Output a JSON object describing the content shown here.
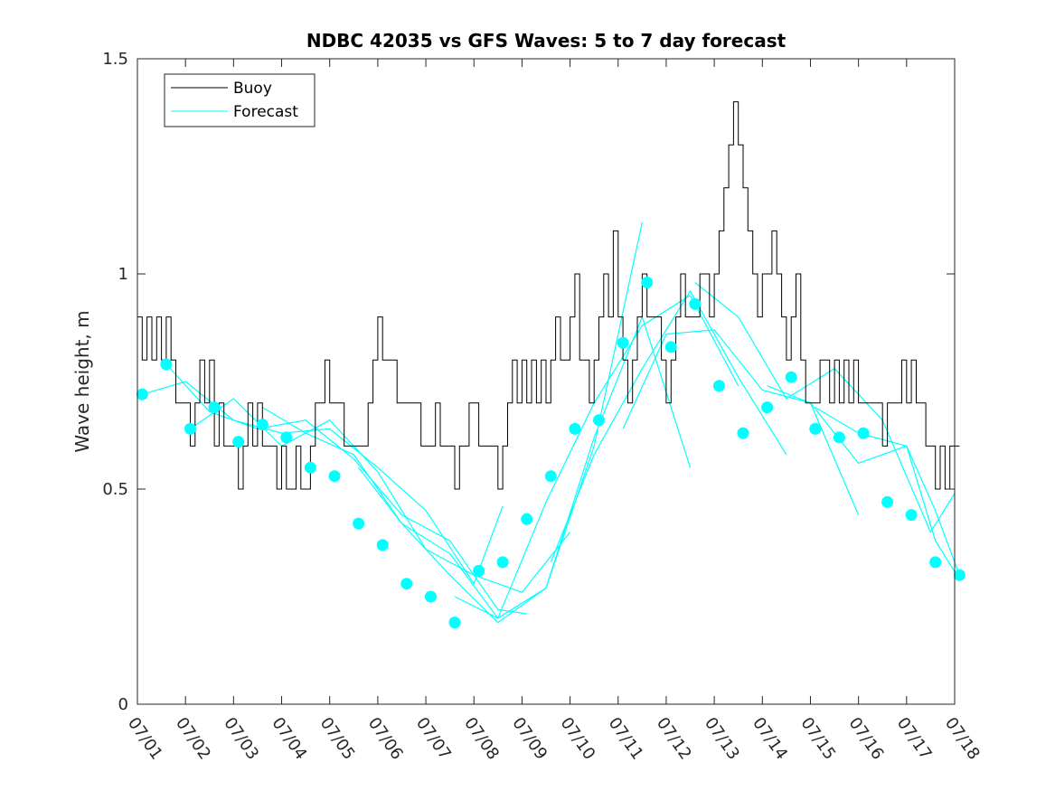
{
  "chart_data": {
    "type": "line",
    "title": "NDBC 42035 vs GFS Waves: 5 to 7 day forecast",
    "xlabel": "",
    "ylabel": "Wave height, m",
    "xlim": [
      "07/01",
      "07/18"
    ],
    "ylim": [
      0,
      1.5
    ],
    "x_ticks": [
      "07/01",
      "07/02",
      "07/03",
      "07/04",
      "07/05",
      "07/06",
      "07/07",
      "07/08",
      "07/09",
      "07/10",
      "07/11",
      "07/12",
      "07/13",
      "07/14",
      "07/15",
      "07/16",
      "07/17",
      "07/18"
    ],
    "y_ticks": [
      "0",
      "0.5",
      "1",
      "1.5"
    ],
    "grid": false,
    "legend_position": "top-left",
    "colors": {
      "buoy": "#000000",
      "forecast": "#00ffff",
      "axes": "#262626"
    },
    "legend": [
      {
        "label": "Buoy",
        "color": "#000000"
      },
      {
        "label": "Forecast",
        "color": "#00ffff"
      }
    ],
    "buoy": {
      "name": "Buoy",
      "day": [
        0,
        0.1,
        0.2,
        0.3,
        0.4,
        0.5,
        0.6,
        0.7,
        0.8,
        0.9,
        1.0,
        1.1,
        1.2,
        1.3,
        1.4,
        1.5,
        1.6,
        1.7,
        1.8,
        1.9,
        2.0,
        2.1,
        2.2,
        2.3,
        2.4,
        2.5,
        2.6,
        2.7,
        2.8,
        2.9,
        3.0,
        3.1,
        3.2,
        3.3,
        3.4,
        3.5,
        3.6,
        3.7,
        3.8,
        3.9,
        4.0,
        4.1,
        4.2,
        4.3,
        4.4,
        4.5,
        4.6,
        4.7,
        4.8,
        4.9,
        5.0,
        5.1,
        5.2,
        5.3,
        5.4,
        5.5,
        5.6,
        5.7,
        5.8,
        5.9,
        6.0,
        6.1,
        6.2,
        6.3,
        6.4,
        6.5,
        6.6,
        6.7,
        6.8,
        6.9,
        7.0,
        7.1,
        7.2,
        7.3,
        7.4,
        7.5,
        7.6,
        7.7,
        7.8,
        7.9,
        8.0,
        8.1,
        8.2,
        8.3,
        8.4,
        8.5,
        8.6,
        8.7,
        8.8,
        8.9,
        9.0,
        9.1,
        9.2,
        9.3,
        9.4,
        9.5,
        9.6,
        9.7,
        9.8,
        9.9,
        10.0,
        10.1,
        10.2,
        10.3,
        10.4,
        10.5,
        10.6,
        10.7,
        10.8,
        10.9,
        11.0,
        11.1,
        11.2,
        11.3,
        11.4,
        11.5,
        11.6,
        11.7,
        11.8,
        11.9,
        12.0,
        12.1,
        12.2,
        12.3,
        12.4,
        12.5,
        12.6,
        12.7,
        12.8,
        12.9,
        13.0,
        13.1,
        13.2,
        13.3,
        13.4,
        13.5,
        13.6,
        13.7,
        13.8,
        13.9,
        14.0,
        14.1,
        14.2,
        14.3,
        14.4,
        14.5,
        14.6,
        14.7,
        14.8,
        14.9,
        15.0,
        15.1,
        15.2,
        15.3,
        15.4,
        15.5,
        15.6,
        15.7,
        15.8,
        15.9,
        16.0,
        16.1,
        16.2,
        16.3,
        16.4,
        16.5,
        16.6,
        16.7,
        16.8,
        16.9,
        17.0,
        17.1
      ],
      "values": [
        0.9,
        0.8,
        0.9,
        0.8,
        0.9,
        0.8,
        0.9,
        0.8,
        0.7,
        0.7,
        0.7,
        0.6,
        0.7,
        0.8,
        0.7,
        0.8,
        0.6,
        0.7,
        0.6,
        0.6,
        0.6,
        0.5,
        0.6,
        0.7,
        0.6,
        0.7,
        0.6,
        0.6,
        0.6,
        0.5,
        0.6,
        0.5,
        0.5,
        0.6,
        0.5,
        0.5,
        0.6,
        0.7,
        0.7,
        0.8,
        0.7,
        0.7,
        0.7,
        0.6,
        0.6,
        0.6,
        0.6,
        0.6,
        0.7,
        0.8,
        0.9,
        0.8,
        0.8,
        0.8,
        0.7,
        0.7,
        0.7,
        0.7,
        0.7,
        0.6,
        0.6,
        0.6,
        0.7,
        0.6,
        0.6,
        0.6,
        0.5,
        0.6,
        0.6,
        0.7,
        0.7,
        0.6,
        0.6,
        0.6,
        0.6,
        0.5,
        0.6,
        0.7,
        0.8,
        0.7,
        0.8,
        0.7,
        0.8,
        0.7,
        0.8,
        0.7,
        0.8,
        0.9,
        0.8,
        0.8,
        0.9,
        1.0,
        0.8,
        0.8,
        0.7,
        0.8,
        0.9,
        1.0,
        0.9,
        1.1,
        0.9,
        0.8,
        0.7,
        0.8,
        0.9,
        1.0,
        0.9,
        0.9,
        0.9,
        0.8,
        0.7,
        0.8,
        0.9,
        1.0,
        0.9,
        0.9,
        0.9,
        1.0,
        1.0,
        0.9,
        1.0,
        1.1,
        1.2,
        1.3,
        1.4,
        1.3,
        1.2,
        1.1,
        1.0,
        0.9,
        1.0,
        1.0,
        1.1,
        1.0,
        0.9,
        0.8,
        0.9,
        1.0,
        0.8,
        0.7,
        0.7,
        0.7,
        0.8,
        0.8,
        0.7,
        0.8,
        0.7,
        0.8,
        0.7,
        0.8,
        0.7,
        0.7,
        0.7,
        0.7,
        0.7,
        0.6,
        0.7,
        0.7,
        0.7,
        0.8,
        0.7,
        0.8,
        0.7,
        0.7,
        0.6,
        0.6,
        0.5,
        0.6,
        0.5,
        0.6,
        0.6
      ]
    },
    "forecast": {
      "name": "Forecast",
      "markers": {
        "day": [
          0.1,
          0.6,
          1.1,
          1.6,
          2.1,
          2.6,
          3.1,
          3.6,
          4.1,
          4.6,
          5.1,
          5.6,
          6.1,
          6.6,
          7.1,
          7.6,
          8.1,
          8.6,
          9.1,
          9.6,
          10.1,
          10.6,
          11.1,
          11.6,
          12.1,
          12.6,
          13.1,
          13.6,
          14.1,
          14.6,
          15.1,
          15.6,
          16.1,
          16.6,
          17.1
        ],
        "values": [
          0.72,
          0.79,
          0.64,
          0.69,
          0.61,
          0.65,
          0.62,
          0.55,
          0.53,
          0.42,
          0.37,
          0.28,
          0.25,
          0.19,
          0.31,
          0.33,
          0.43,
          0.53,
          0.64,
          0.66,
          0.84,
          0.98,
          0.83,
          0.93,
          0.74,
          0.63,
          0.69,
          0.76,
          0.64,
          0.62,
          0.63,
          0.47,
          0.44,
          0.33,
          0.3
        ]
      },
      "runs": [
        {
          "day": [
            0.1,
            1.0,
            2.0,
            3.0,
            4.0,
            5.0,
            6.0,
            7.0,
            7.6
          ],
          "values": [
            0.72,
            0.75,
            0.66,
            0.63,
            0.64,
            0.55,
            0.45,
            0.28,
            0.46
          ]
        },
        {
          "day": [
            0.6,
            1.5,
            2.5,
            3.5,
            4.5,
            5.5,
            6.5,
            7.5,
            8.1
          ],
          "values": [
            0.79,
            0.68,
            0.64,
            0.66,
            0.57,
            0.44,
            0.38,
            0.22,
            0.21
          ]
        },
        {
          "day": [
            1.1,
            2.0,
            3.0,
            4.0,
            5.0,
            6.0,
            7.0,
            8.0,
            9.0
          ],
          "values": [
            0.64,
            0.71,
            0.6,
            0.66,
            0.54,
            0.36,
            0.3,
            0.26,
            0.4
          ]
        },
        {
          "day": [
            2.6,
            3.5,
            4.5,
            5.5,
            6.5,
            7.5,
            8.5,
            9.5,
            10.5
          ],
          "values": [
            0.69,
            0.63,
            0.58,
            0.42,
            0.35,
            0.2,
            0.27,
            0.6,
            1.12
          ]
        },
        {
          "day": [
            4.6,
            5.5,
            6.5,
            7.5,
            8.5,
            9.5,
            10.5,
            11.5
          ],
          "values": [
            0.55,
            0.42,
            0.3,
            0.19,
            0.27,
            0.62,
            0.9,
            0.55
          ]
        },
        {
          "day": [
            6.6,
            7.5,
            8.5,
            9.5,
            10.5,
            11.5,
            12.5
          ],
          "values": [
            0.25,
            0.2,
            0.47,
            0.7,
            0.88,
            0.95,
            0.74
          ]
        },
        {
          "day": [
            8.6,
            9.5,
            10.5,
            11.5,
            12.5,
            13.5
          ],
          "values": [
            0.33,
            0.58,
            0.78,
            0.96,
            0.76,
            0.58
          ]
        },
        {
          "day": [
            10.1,
            11.0,
            12.0,
            13.0,
            14.0,
            15.0
          ],
          "values": [
            0.64,
            0.86,
            0.87,
            0.73,
            0.7,
            0.44
          ]
        },
        {
          "day": [
            11.6,
            12.5,
            13.5,
            14.5,
            15.5,
            16.5,
            17.0
          ],
          "values": [
            0.98,
            0.9,
            0.71,
            0.78,
            0.66,
            0.4,
            0.49
          ]
        },
        {
          "day": [
            13.1,
            14.0,
            15.0,
            16.0,
            16.6,
            17.1
          ],
          "values": [
            0.74,
            0.7,
            0.56,
            0.6,
            0.38,
            0.29
          ]
        },
        {
          "day": [
            14.1,
            15.0,
            16.0,
            16.6,
            17.1
          ],
          "values": [
            0.69,
            0.63,
            0.6,
            0.45,
            0.3
          ]
        }
      ]
    }
  }
}
